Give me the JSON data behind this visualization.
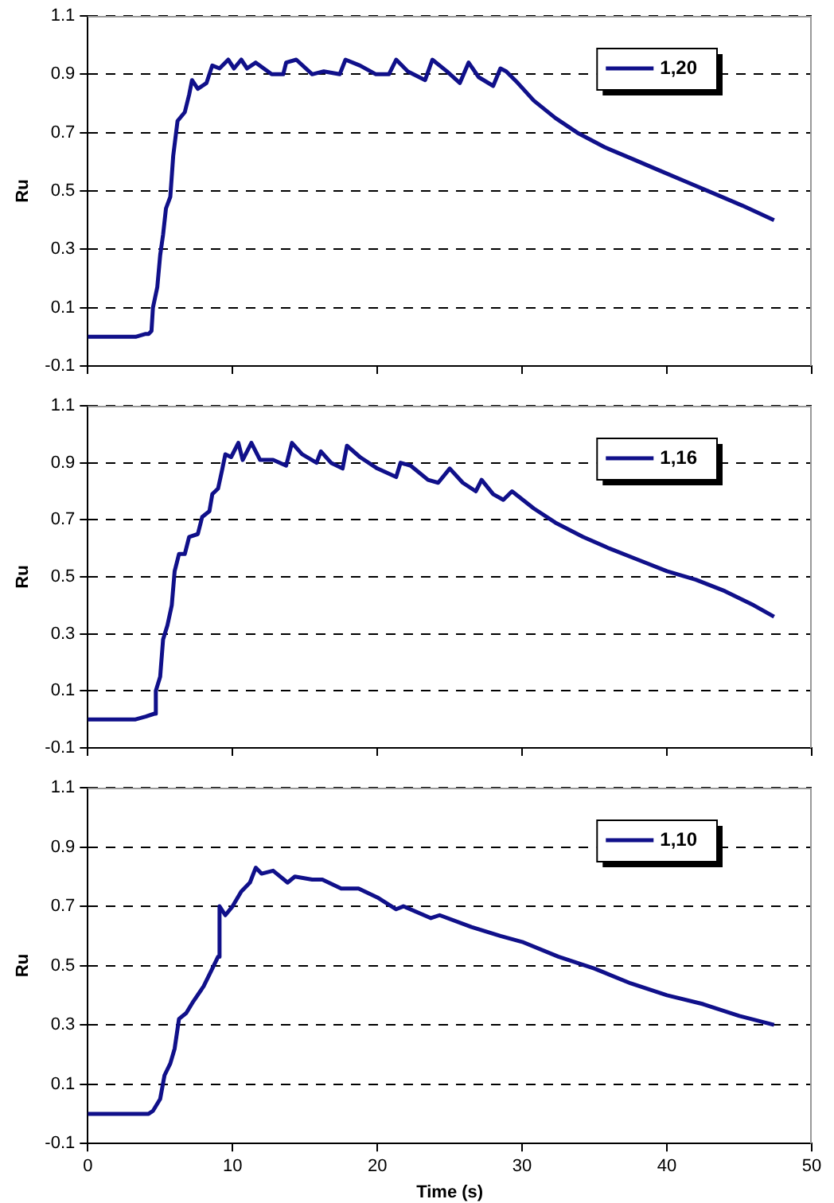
{
  "chart_data": [
    {
      "type": "line",
      "ylabel": "Ru",
      "xlim": [
        0,
        50
      ],
      "xticks": [
        0,
        10,
        20,
        30,
        40,
        50
      ],
      "ylim": [
        -0.1,
        1.1
      ],
      "yticks": [
        -0.1,
        0.1,
        0.3,
        0.5,
        0.7,
        0.9,
        1.1
      ],
      "grid": "y",
      "line_style": "solid",
      "legend": "top right",
      "tick_labels": "y",
      "marker": "none",
      "series": [
        {
          "name": "1,20",
          "color": "#10108a",
          "x": [
            0,
            3.3,
            4.0,
            4.2,
            4.4,
            4.5,
            4.8,
            5.0,
            5.2,
            5.4,
            5.7,
            5.9,
            6.2,
            6.7,
            7.0,
            7.2,
            7.6,
            8.2,
            8.6,
            9.1,
            9.7,
            10.1,
            10.6,
            11.0,
            11.6,
            12.7,
            13.5,
            13.7,
            14.4,
            15.5,
            16.3,
            17.4,
            17.8,
            18.8,
            19.9,
            20.8,
            21.3,
            22.1,
            23.3,
            23.8,
            24.8,
            25.7,
            26.3,
            27.0,
            28.0,
            28.5,
            28.9,
            29.7,
            30.8,
            32.3,
            33.8,
            35.7,
            37.6,
            39.5,
            41.4,
            43.3,
            45.2,
            47.4
          ],
          "values": [
            0,
            0,
            0.01,
            0.01,
            0.02,
            0.1,
            0.17,
            0.28,
            0.35,
            0.44,
            0.48,
            0.62,
            0.74,
            0.77,
            0.83,
            0.88,
            0.85,
            0.87,
            0.93,
            0.92,
            0.95,
            0.92,
            0.95,
            0.92,
            0.94,
            0.9,
            0.9,
            0.94,
            0.95,
            0.9,
            0.91,
            0.9,
            0.95,
            0.93,
            0.9,
            0.9,
            0.95,
            0.91,
            0.88,
            0.95,
            0.91,
            0.87,
            0.94,
            0.89,
            0.86,
            0.92,
            0.91,
            0.87,
            0.81,
            0.75,
            0.7,
            0.65,
            0.61,
            0.57,
            0.53,
            0.49,
            0.45,
            0.4
          ]
        }
      ]
    },
    {
      "type": "line",
      "ylabel": "Ru",
      "xlim": [
        0,
        50
      ],
      "xticks": [
        0,
        10,
        20,
        30,
        40,
        50
      ],
      "ylim": [
        -0.1,
        1.1
      ],
      "yticks": [
        -0.1,
        0.1,
        0.3,
        0.5,
        0.7,
        0.9,
        1.1
      ],
      "grid": "y",
      "line_style": "solid",
      "legend": "top right",
      "tick_labels": "y",
      "marker": "none",
      "series": [
        {
          "name": "1,16",
          "color": "#10108a",
          "x": [
            0,
            3.3,
            4.0,
            4.6,
            4.7,
            5.0,
            5.2,
            5.5,
            5.8,
            6.0,
            6.3,
            6.7,
            7.0,
            7.6,
            7.9,
            8.4,
            8.6,
            9.0,
            9.3,
            9.5,
            9.9,
            10.4,
            10.7,
            11.3,
            11.9,
            12.8,
            13.7,
            14.1,
            14.8,
            15.8,
            16.1,
            16.8,
            17.6,
            17.9,
            18.8,
            20.0,
            21.3,
            21.6,
            22.3,
            23.5,
            24.2,
            25.0,
            25.9,
            26.8,
            27.2,
            28.0,
            28.7,
            29.3,
            30.8,
            32.3,
            34.2,
            36.0,
            38.0,
            40.0,
            42.0,
            44.0,
            46.0,
            47.4
          ],
          "values": [
            0,
            0,
            0.01,
            0.02,
            0.1,
            0.15,
            0.28,
            0.33,
            0.4,
            0.52,
            0.58,
            0.58,
            0.64,
            0.65,
            0.71,
            0.73,
            0.79,
            0.81,
            0.88,
            0.93,
            0.92,
            0.97,
            0.91,
            0.97,
            0.91,
            0.91,
            0.89,
            0.97,
            0.93,
            0.9,
            0.94,
            0.9,
            0.88,
            0.96,
            0.92,
            0.88,
            0.85,
            0.9,
            0.89,
            0.84,
            0.83,
            0.88,
            0.83,
            0.8,
            0.84,
            0.79,
            0.77,
            0.8,
            0.74,
            0.69,
            0.64,
            0.6,
            0.56,
            0.52,
            0.49,
            0.45,
            0.4,
            0.36
          ]
        }
      ]
    },
    {
      "type": "line",
      "xlabel": "Time (s)",
      "ylabel": "Ru",
      "xlim": [
        0,
        50
      ],
      "xticks": [
        0,
        10,
        20,
        30,
        40,
        50
      ],
      "ylim": [
        -0.1,
        1.1
      ],
      "yticks": [
        -0.1,
        0.1,
        0.3,
        0.5,
        0.7,
        0.9,
        1.1
      ],
      "grid": "y",
      "line_style": "solid",
      "legend": "top right",
      "marker": "none",
      "series": [
        {
          "name": "1,10",
          "color": "#10108a",
          "x": [
            0,
            4.2,
            4.5,
            5.0,
            5.3,
            5.7,
            6.0,
            6.3,
            6.8,
            7.3,
            8.0,
            8.4,
            9.0,
            9.1,
            9.5,
            10.0,
            10.6,
            11.2,
            11.6,
            12.0,
            12.8,
            13.8,
            14.3,
            15.5,
            16.2,
            17.5,
            18.7,
            20.0,
            21.3,
            21.8,
            23.7,
            24.3,
            26.5,
            28.5,
            30.0,
            32.5,
            35.0,
            37.5,
            40.0,
            42.5,
            45.0,
            47.4
          ],
          "values": [
            0,
            0,
            0.01,
            0.05,
            0.13,
            0.17,
            0.22,
            0.32,
            0.34,
            0.38,
            0.43,
            0.47,
            0.53,
            0.7,
            0.67,
            0.7,
            0.75,
            0.78,
            0.83,
            0.81,
            0.82,
            0.78,
            0.8,
            0.79,
            0.79,
            0.76,
            0.76,
            0.73,
            0.69,
            0.7,
            0.66,
            0.67,
            0.63,
            0.6,
            0.58,
            0.53,
            0.49,
            0.44,
            0.4,
            0.37,
            0.33,
            0.3
          ]
        }
      ]
    }
  ]
}
